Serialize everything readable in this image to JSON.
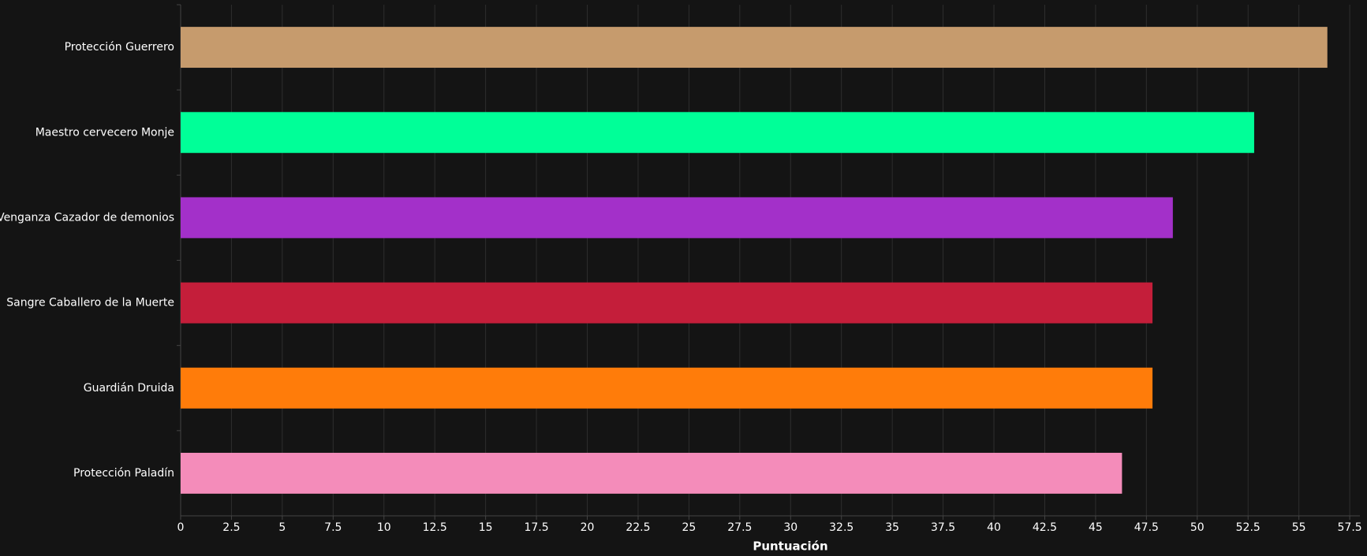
{
  "chart_data": {
    "type": "hbar",
    "x_label": "Puntuación",
    "categories": [
      "Protección Guerrero",
      "Maestro cervecero Monje",
      "Venganza Cazador de demonios",
      "Sangre Caballero de la Muerte",
      "Guardián Druida",
      "Protección Paladín"
    ],
    "values": [
      56.4,
      52.8,
      48.8,
      47.8,
      47.8,
      46.3
    ],
    "colors": [
      "#c69b6d",
      "#00ff98",
      "#a330c9",
      "#c41e3a",
      "#ff7c0a",
      "#f48cba"
    ],
    "xlim": [
      0,
      58
    ],
    "xticks": [
      0,
      2.5,
      5,
      7.5,
      10,
      12.5,
      15,
      17.5,
      20,
      22.5,
      25,
      27.5,
      30,
      32.5,
      35,
      37.5,
      40,
      42.5,
      45,
      47.5,
      50,
      52.5,
      55,
      57.5
    ],
    "grid": true
  }
}
